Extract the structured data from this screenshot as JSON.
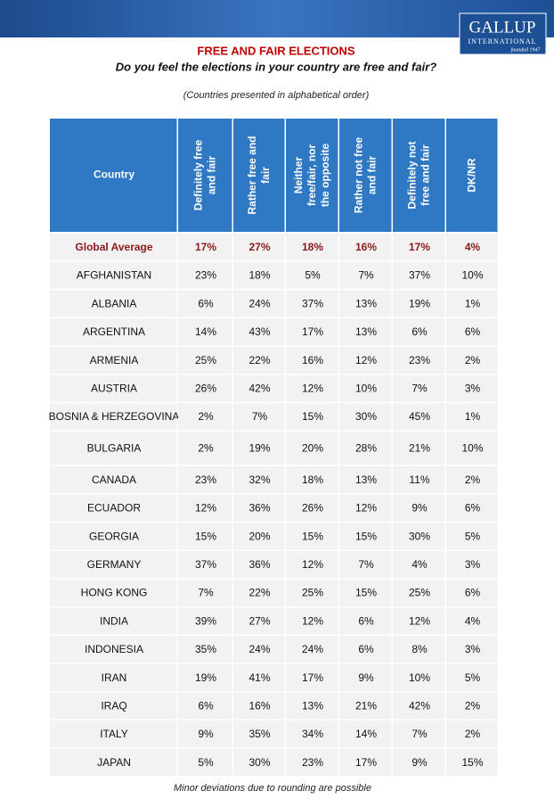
{
  "logo": {
    "name": "GALLUP",
    "subtitle": "INTERNATIONAL",
    "founded": "founded 1947"
  },
  "title": "FREE AND FAIR ELECTIONS",
  "question": "Do you feel the elections in your country are free and fair?",
  "note": "(Countries presented in alphabetical order)",
  "table": {
    "columns": [
      "Country",
      "Definitely free and fair",
      "Rather free and fair",
      "Neither free/fair, nor the opposite",
      "Rather not free and fair",
      "Definitely not free and fair",
      "DK/NR"
    ],
    "global": [
      "Global Average",
      "17%",
      "27%",
      "18%",
      "16%",
      "17%",
      "4%"
    ],
    "rows": [
      [
        "AFGHANISTAN",
        "23%",
        "18%",
        "5%",
        "7%",
        "37%",
        "10%"
      ],
      [
        "ALBANIA",
        "6%",
        "24%",
        "37%",
        "13%",
        "19%",
        "1%"
      ],
      [
        "ARGENTINA",
        "14%",
        "43%",
        "17%",
        "13%",
        "6%",
        "6%"
      ],
      [
        "ARMENIA",
        "25%",
        "22%",
        "16%",
        "12%",
        "23%",
        "2%"
      ],
      [
        "AUSTRIA",
        "26%",
        "42%",
        "12%",
        "10%",
        "7%",
        "3%"
      ],
      [
        "BOSNIA & HERZEGOVINA",
        "2%",
        "7%",
        "15%",
        "30%",
        "45%",
        "1%"
      ],
      [
        "BULGARIA",
        "2%",
        "19%",
        "20%",
        "28%",
        "21%",
        "10%"
      ],
      [
        "CANADA",
        "23%",
        "32%",
        "18%",
        "13%",
        "11%",
        "2%"
      ],
      [
        "ECUADOR",
        "12%",
        "36%",
        "26%",
        "12%",
        "9%",
        "6%"
      ],
      [
        "GEORGIA",
        "15%",
        "20%",
        "15%",
        "15%",
        "30%",
        "5%"
      ],
      [
        "GERMANY",
        "37%",
        "36%",
        "12%",
        "7%",
        "4%",
        "3%"
      ],
      [
        "HONG KONG",
        "7%",
        "22%",
        "25%",
        "15%",
        "25%",
        "6%"
      ],
      [
        "INDIA",
        "39%",
        "27%",
        "12%",
        "6%",
        "12%",
        "4%"
      ],
      [
        "INDONESIA",
        "35%",
        "24%",
        "24%",
        "6%",
        "8%",
        "3%"
      ],
      [
        "IRAN",
        "19%",
        "41%",
        "17%",
        "9%",
        "10%",
        "5%"
      ],
      [
        "IRAQ",
        "6%",
        "16%",
        "13%",
        "21%",
        "42%",
        "2%"
      ],
      [
        "ITALY",
        "9%",
        "35%",
        "34%",
        "14%",
        "7%",
        "2%"
      ],
      [
        "JAPAN",
        "5%",
        "30%",
        "23%",
        "17%",
        "9%",
        "15%"
      ]
    ]
  },
  "footnote": "Minor deviations due to rounding are possible"
}
